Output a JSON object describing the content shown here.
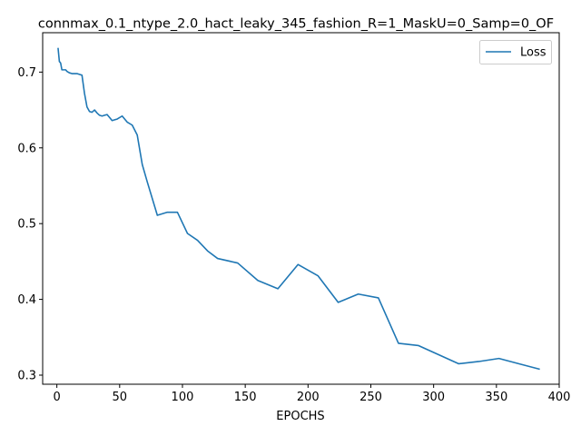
{
  "chart_data": {
    "type": "line",
    "title": "connmax_0.1_ntype_2.0_hact_leaky_345_fashion_R=1_MaskU=0_Samp=0_OF",
    "xlabel": "EPOCHS",
    "ylabel": "",
    "xlim": [
      -11.3,
      400
    ],
    "ylim": [
      0.288,
      0.752
    ],
    "xticks": [
      0,
      50,
      100,
      150,
      200,
      250,
      300,
      350,
      400
    ],
    "xtick_labels": [
      "0",
      "50",
      "100",
      "150",
      "200",
      "250",
      "300",
      "350",
      "400"
    ],
    "yticks": [
      0.3,
      0.4,
      0.5,
      0.6,
      0.7
    ],
    "ytick_labels": [
      "0.3",
      "0.4",
      "0.5",
      "0.6",
      "0.7"
    ],
    "grid": false,
    "legend_position": "top-right",
    "series": [
      {
        "name": "Loss",
        "color": "#1f77b4",
        "x": [
          1,
          2,
          3,
          4,
          5,
          6,
          7,
          8,
          10,
          12,
          14,
          16,
          18,
          20,
          22,
          24,
          26,
          28,
          30,
          32,
          34,
          36,
          38,
          40,
          42,
          44,
          46,
          48,
          52,
          56,
          60,
          64,
          68,
          72,
          80,
          88,
          96,
          104,
          112,
          120,
          128,
          144,
          160,
          176,
          192,
          208,
          224,
          240,
          256,
          272,
          288,
          304,
          320,
          336,
          352,
          368,
          384
        ],
        "y": [
          0.731,
          0.714,
          0.712,
          0.703,
          0.703,
          0.703,
          0.703,
          0.701,
          0.699,
          0.698,
          0.698,
          0.698,
          0.697,
          0.696,
          0.672,
          0.654,
          0.648,
          0.647,
          0.65,
          0.646,
          0.643,
          0.642,
          0.643,
          0.644,
          0.64,
          0.636,
          0.637,
          0.638,
          0.642,
          0.634,
          0.63,
          0.617,
          0.578,
          0.555,
          0.511,
          0.515,
          0.515,
          0.487,
          0.478,
          0.464,
          0.454,
          0.448,
          0.425,
          0.414,
          0.446,
          0.431,
          0.396,
          0.407,
          0.402,
          0.342,
          0.339,
          0.327,
          0.315,
          0.318,
          0.322,
          0.315,
          0.308
        ]
      }
    ]
  }
}
